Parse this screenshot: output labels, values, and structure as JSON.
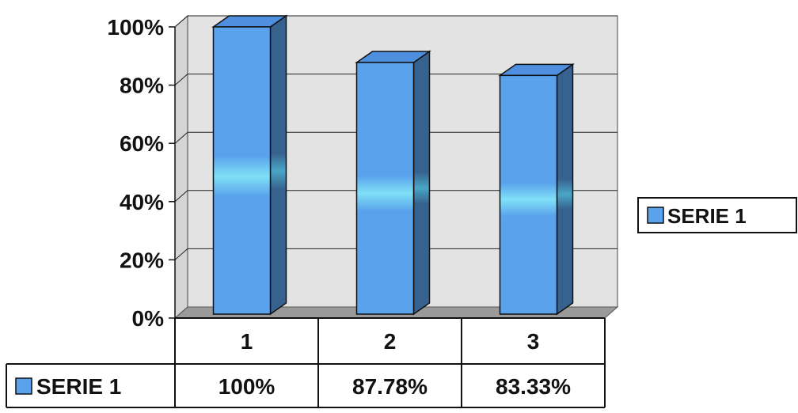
{
  "chart_data": {
    "type": "bar",
    "categories": [
      "1",
      "2",
      "3"
    ],
    "series": [
      {
        "name": "SERIE 1",
        "values": [
          100,
          87.78,
          83.33
        ]
      }
    ],
    "value_labels": [
      "100%",
      "87.78%",
      "83.33%"
    ],
    "y_ticks": [
      "0%",
      "20%",
      "40%",
      "60%",
      "80%",
      "100%"
    ],
    "ylim": [
      0,
      100
    ],
    "grid": true,
    "legend": "right",
    "data_table": true,
    "bar_style": "3d-column",
    "colors": {
      "bar_front": "#5aa2ec",
      "bar_side": "#37628f",
      "bar_top": "#4f8fe0",
      "wall": "#e3e3e3",
      "floor": "#9a9a9a"
    }
  }
}
